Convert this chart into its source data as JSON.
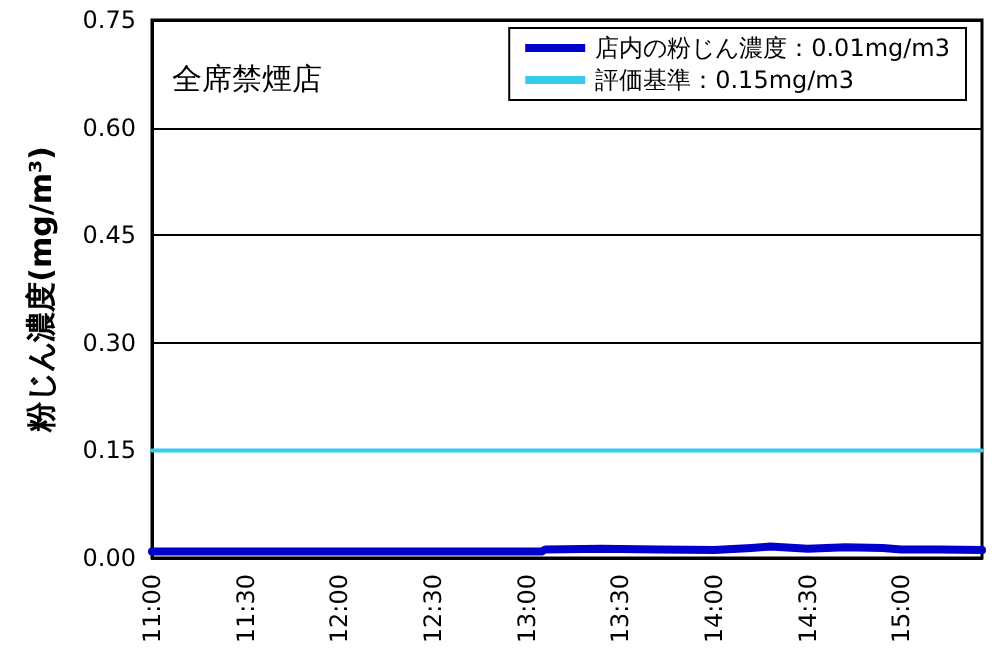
{
  "chart_data": {
    "type": "line",
    "ylabel": "粉じん濃度(mg/m³)",
    "annotations": [
      "全席禁煙店"
    ],
    "x": [
      11,
      11.25,
      11.5,
      12,
      12.5,
      13,
      13.08,
      13.1,
      13.4,
      13.7,
      14,
      14.2,
      14.3,
      14.5,
      14.7,
      14.9,
      15,
      15.2,
      15.43
    ],
    "series": [
      {
        "name": "店内の粉じん濃度：0.01mg/m3",
        "color": "#0000cc",
        "values": [
          0.009,
          0.009,
          0.009,
          0.009,
          0.009,
          0.009,
          0.009,
          0.012,
          0.013,
          0.012,
          0.011,
          0.014,
          0.016,
          0.013,
          0.015,
          0.014,
          0.012,
          0.012,
          0.011
        ]
      },
      {
        "name": "評価基準：0.15mg/m3",
        "color": "#33ccee",
        "x": [
          11,
          15.43
        ],
        "values": [
          0.15,
          0.15
        ]
      }
    ],
    "xlim": [
      11,
      15.43
    ],
    "xticks": [
      {
        "value": 11,
        "label": "11:00"
      },
      {
        "value": 11.5,
        "label": "11:30"
      },
      {
        "value": 12,
        "label": "12:00"
      },
      {
        "value": 12.5,
        "label": "12:30"
      },
      {
        "value": 13,
        "label": "13:00"
      },
      {
        "value": 13.5,
        "label": "13:30"
      },
      {
        "value": 14,
        "label": "14:00"
      },
      {
        "value": 14.5,
        "label": "14:30"
      },
      {
        "value": 15,
        "label": "15:00"
      }
    ],
    "ylim": [
      0,
      0.75
    ],
    "yticks": [
      {
        "value": 0,
        "label": "0.00"
      },
      {
        "value": 0.15,
        "label": "0.15"
      },
      {
        "value": 0.3,
        "label": "0.30"
      },
      {
        "value": 0.45,
        "label": "0.45"
      },
      {
        "value": 0.6,
        "label": "0.60"
      },
      {
        "value": 0.75,
        "label": "0.75"
      }
    ],
    "grid": "y",
    "legend": "top right",
    "marker": "none",
    "line_style": "solid"
  }
}
